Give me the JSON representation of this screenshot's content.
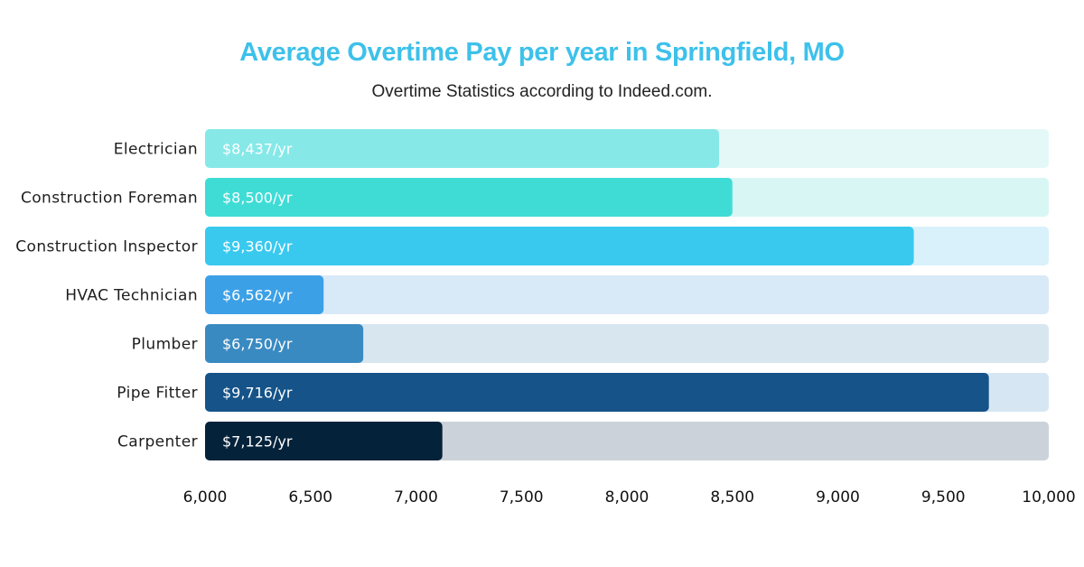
{
  "chart_data": {
    "type": "bar",
    "orientation": "horizontal",
    "title": "Average Overtime Pay per year in Springfield, MO",
    "subtitle": "Overtime Statistics according to Indeed.com.",
    "categories": [
      "Electrician",
      "Construction Foreman",
      "Construction Inspector",
      "HVAC Technician",
      "Plumber",
      "Pipe Fitter",
      "Carpenter"
    ],
    "values": [
      8437,
      8500,
      9360,
      6562,
      6750,
      9716,
      7125
    ],
    "value_labels": [
      "$8,437/yr",
      "$8,500/yr",
      "$9,360/yr",
      "$6,562/yr",
      "$6,750/yr",
      "$9,716/yr",
      "$7,125/yr"
    ],
    "xlim": [
      6000,
      10000
    ],
    "xticks": [
      6000,
      6500,
      7000,
      7500,
      8000,
      8500,
      9000,
      9500,
      10000
    ],
    "xtick_labels": [
      "6,000",
      "6,500",
      "7,000",
      "7,500",
      "8,000",
      "8,500",
      "9,000",
      "9,500",
      "10,000"
    ],
    "bar_colors": [
      "#87e8e8",
      "#3fdcd6",
      "#39c9ef",
      "#3ca0e6",
      "#3a8ac2",
      "#155388",
      "#05223b"
    ],
    "track_colors": [
      "#e5f8f8",
      "#d8f6f4",
      "#d8f1fb",
      "#d8e9f8",
      "#d8e6f0",
      "#d6e7f3",
      "#ccd2d9"
    ],
    "grid": false,
    "legend": "none"
  }
}
